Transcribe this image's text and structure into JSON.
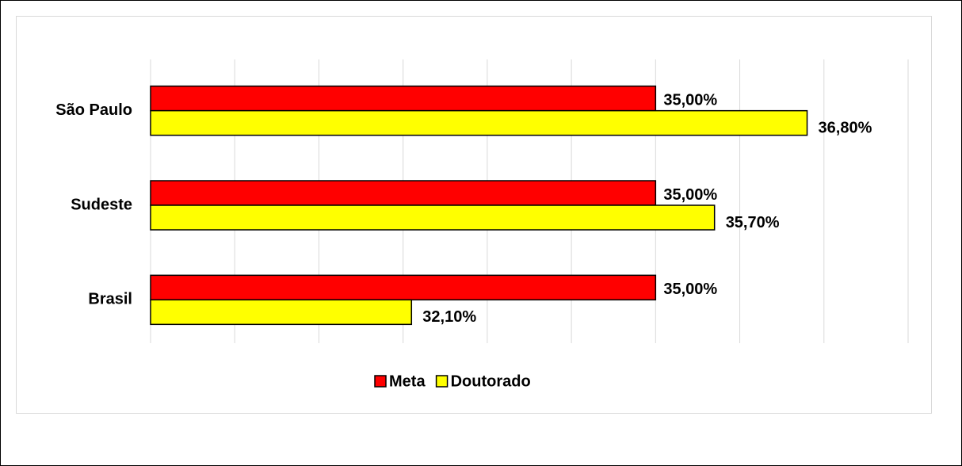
{
  "chart_data": {
    "type": "bar",
    "orientation": "horizontal",
    "categories": [
      "São Paulo",
      "Sudeste",
      "Brasil"
    ],
    "series": [
      {
        "name": "Meta",
        "color": "#ff0000",
        "values": [
          35.0,
          35.0,
          35.0
        ],
        "value_labels": [
          "35,00%",
          "35,00%",
          "35,00%"
        ]
      },
      {
        "name": "Doutorado",
        "color": "#ffff00",
        "values": [
          36.8,
          35.7,
          32.1
        ],
        "value_labels": [
          "36,80%",
          "35,70%",
          "32,10%"
        ]
      }
    ],
    "xlim": [
      29,
      38
    ],
    "xticks": [
      29,
      30,
      31,
      32,
      33,
      34,
      35,
      36,
      37,
      38
    ],
    "grid": true,
    "legend": "bottom"
  }
}
